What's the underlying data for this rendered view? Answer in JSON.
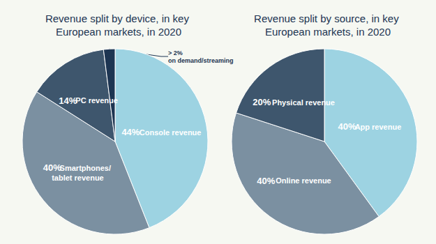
{
  "chart_data": [
    {
      "type": "pie",
      "title": "Revenue split by device, in key European markets, in 2020",
      "categories": [
        "Console revenue",
        "Smartphones/tablet revenue",
        "PC revenue",
        "on demand/streaming"
      ],
      "values": [
        44,
        40,
        14,
        2
      ],
      "value_labels": [
        "44%",
        "40%",
        "14%",
        "> 2%"
      ],
      "colors": [
        "#9dd3e2",
        "#7b90a1",
        "#3e566d",
        "#1d3552"
      ],
      "data_labels": true
    },
    {
      "type": "pie",
      "title": "Revenue split by source, in key European markets, in 2020",
      "categories": [
        "App revenue",
        "Online revenue",
        "Physical revenue"
      ],
      "values": [
        40,
        40,
        20
      ],
      "value_labels": [
        "40%",
        "40%",
        "20%"
      ],
      "colors": [
        "#9dd3e2",
        "#7b90a1",
        "#3e566d"
      ],
      "data_labels": true
    }
  ]
}
